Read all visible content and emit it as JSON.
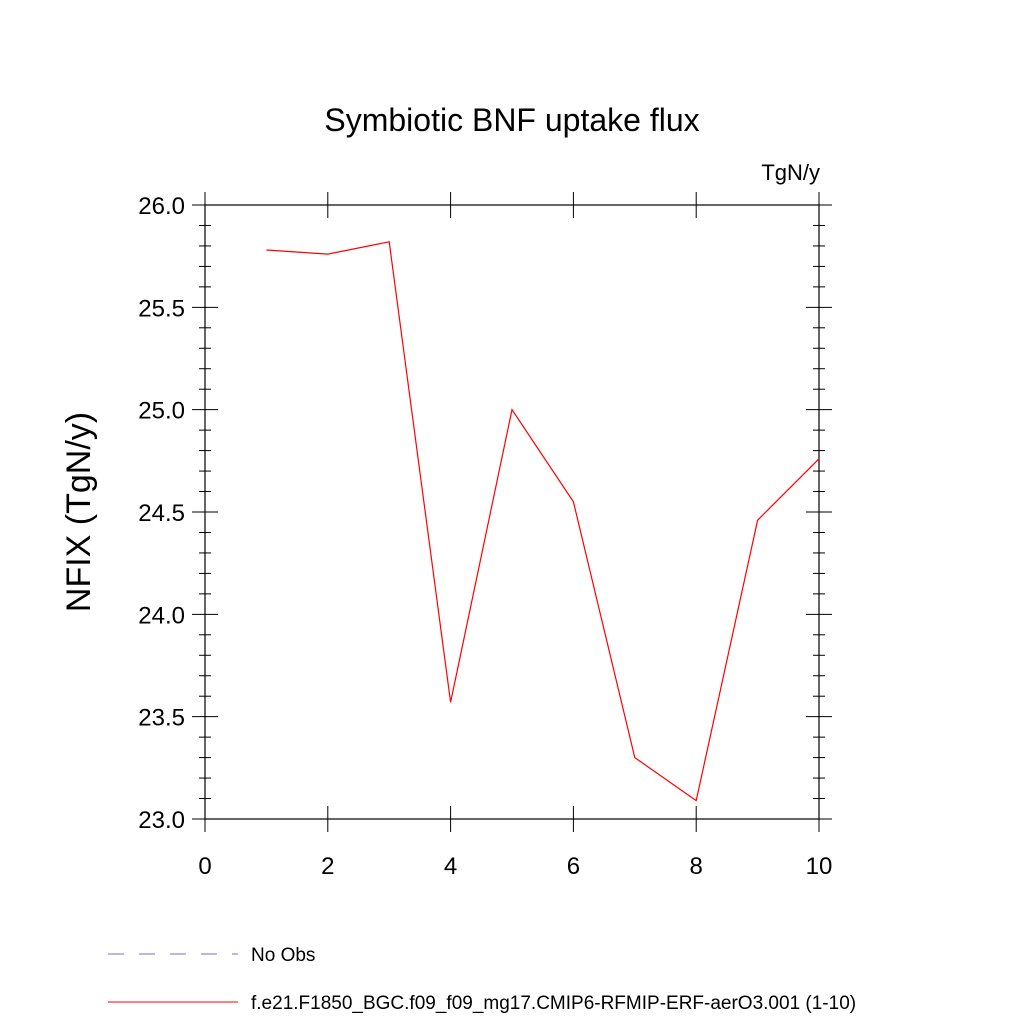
{
  "chart_data": {
    "type": "line",
    "title": "Symbiotic BNF uptake flux",
    "units": "TgN/y",
    "xlabel": "",
    "ylabel": "NFIX  (TgN/y)",
    "xlim": [
      0,
      10
    ],
    "ylim": [
      23.0,
      26.0
    ],
    "x_ticks": [
      0,
      2,
      4,
      6,
      8,
      10
    ],
    "x_tick_labels": [
      "0",
      "2",
      "4",
      "6",
      "8",
      "10"
    ],
    "y_ticks": [
      23.0,
      23.5,
      24.0,
      24.5,
      25.0,
      25.5,
      26.0
    ],
    "y_tick_labels": [
      "23.0",
      "23.5",
      "24.0",
      "24.5",
      "25.0",
      "25.5",
      "26.0"
    ],
    "grid": false,
    "legend_position": "bottom",
    "series": [
      {
        "name": "f.e21.F1850_BGC.f09_f09_mg17.CMIP6-RFMIP-ERF-aerO3.001 (1-10)",
        "color": "#ff0000",
        "style": "solid",
        "x": [
          1,
          2,
          3,
          4,
          5,
          6,
          7,
          8,
          9,
          10
        ],
        "y": [
          25.78,
          25.76,
          25.82,
          23.57,
          25.0,
          24.55,
          23.3,
          23.09,
          24.46,
          24.76
        ]
      }
    ],
    "legend": [
      {
        "label": "No Obs",
        "color": "#7a6fd6",
        "style": "dashed"
      },
      {
        "label": "f.e21.F1850_BGC.f09_f09_mg17.CMIP6-RFMIP-ERF-aerO3.001 (1-10)",
        "color": "#ff0000",
        "style": "solid"
      }
    ]
  }
}
